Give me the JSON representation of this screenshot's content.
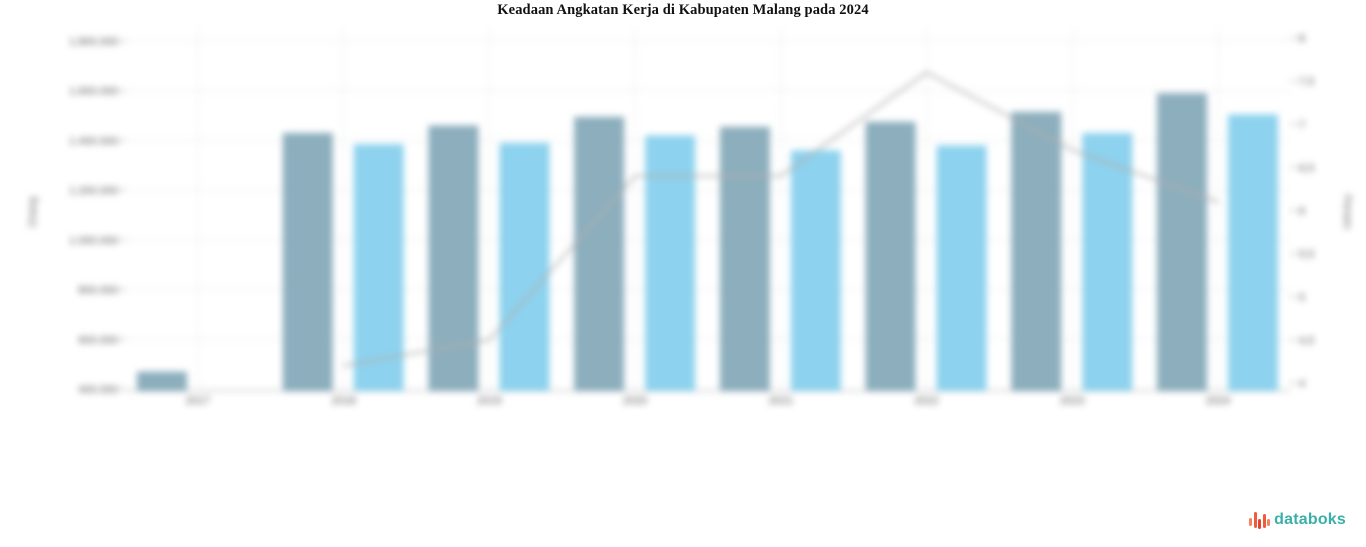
{
  "header": {
    "title": "Keadaan Angkatan Kerja di Kabupaten Malang pada 2024"
  },
  "branding": {
    "logo_text": "databoks",
    "logo_text_color": "#3aafa9",
    "glyph_colors": [
      "#f4845f",
      "#ef5b3f",
      "#e8432e",
      "#ef5b3f",
      "#f4845f"
    ],
    "glyph_bar_heights": [
      8,
      16,
      10,
      14,
      7
    ],
    "glyph_bar_offsets": [
      4,
      0,
      7,
      1,
      5
    ]
  },
  "chart_data": {
    "type": "bar",
    "subtype": "grouped bars with secondary-axis line",
    "title": "Keadaan Angkatan Kerja di Kabupaten Malang pada 2024",
    "categories": [
      "2017",
      "2018",
      "2019",
      "2020",
      "2021",
      "2022",
      "2023",
      "2024"
    ],
    "series": [
      {
        "name": "bar-series-dark",
        "type": "bar",
        "axis": "left",
        "color": "#8caebd",
        "values": [
          470000,
          1430000,
          1460000,
          1495000,
          1455000,
          1475000,
          1515000,
          1590000
        ]
      },
      {
        "name": "bar-series-light",
        "type": "bar",
        "axis": "left",
        "color": "#8dd2ee",
        "values": [
          null,
          1385000,
          1390000,
          1420000,
          1360000,
          1380000,
          1430000,
          1505000
        ]
      },
      {
        "name": "line-series",
        "type": "line",
        "axis": "right",
        "color": "#b1b1b1",
        "values": [
          null,
          4.2,
          4.5,
          6.4,
          6.4,
          7.6,
          6.7,
          6.1
        ]
      }
    ],
    "left_axis": {
      "title": "Orang",
      "min": 400000,
      "max": 1800000,
      "tick_step": 200000,
      "tick_labels": [
        "400.000",
        "600.000",
        "800.000",
        "1.000.000",
        "1.200.000",
        "1.400.000",
        "1.600.000",
        "1.800.000"
      ]
    },
    "right_axis": {
      "title": "Persen",
      "min": 4,
      "max": 8,
      "tick_step": 0.5,
      "tick_labels": [
        "4",
        "4,5",
        "5",
        "5,5",
        "6",
        "6,5",
        "7",
        "7,5",
        "8"
      ]
    },
    "xlabel": "",
    "ylabel": "Orang",
    "grid": true,
    "legend": "none",
    "grid_color": "#ececec",
    "tick_label_color": "#555555",
    "axis_title_color": "#666666"
  }
}
